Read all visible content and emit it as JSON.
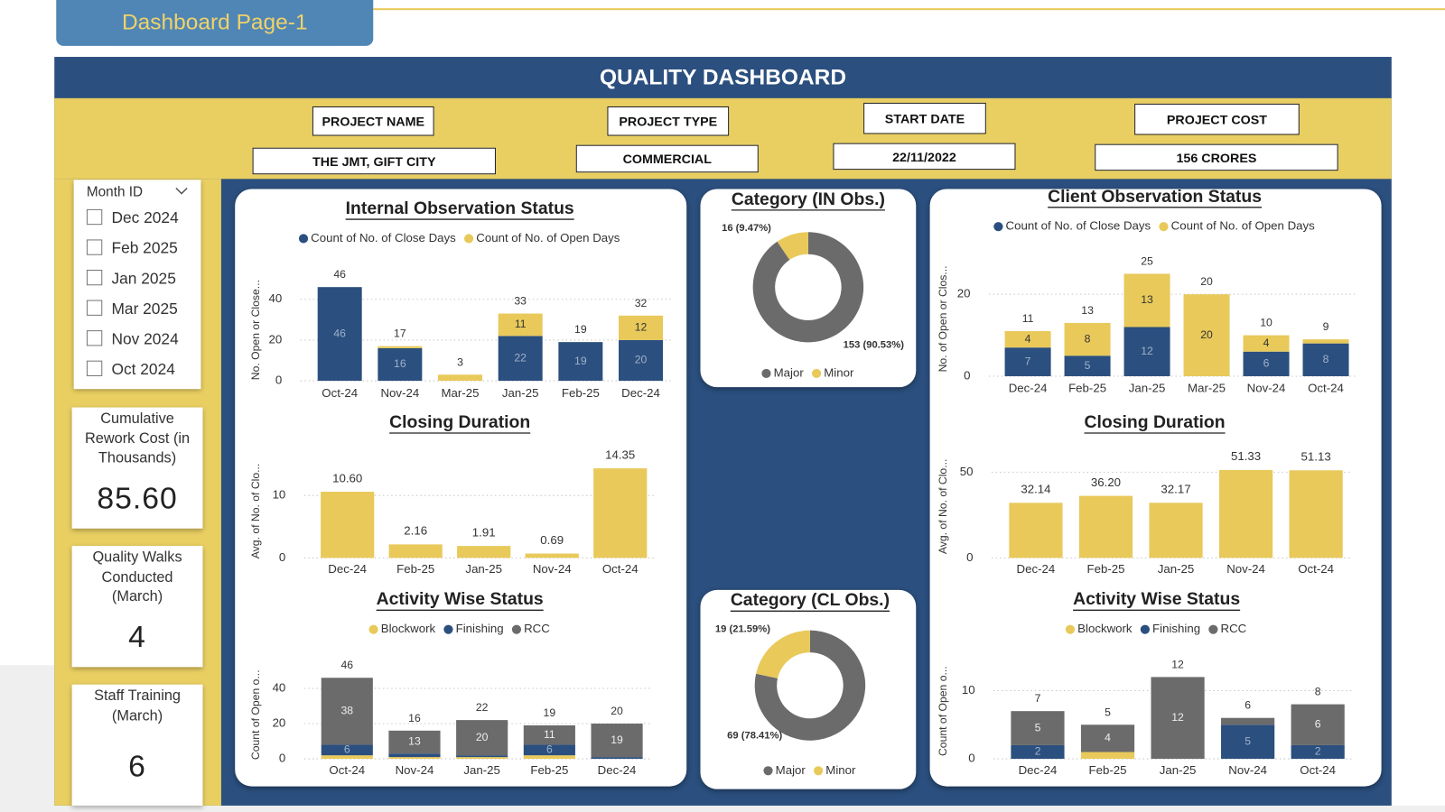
{
  "page_tab": "Dashboard Page-1",
  "dashboard_title": "QUALITY DASHBOARD",
  "project_info": [
    {
      "label": "PROJECT NAME",
      "value": "THE JMT, GIFT CITY"
    },
    {
      "label": "PROJECT TYPE",
      "value": "COMMERCIAL"
    },
    {
      "label": "START DATE",
      "value": "22/11/2022"
    },
    {
      "label": "PROJECT COST",
      "value": "156 CRORES"
    }
  ],
  "slicer": {
    "title": "Month ID",
    "items": [
      "Dec 2024",
      "Feb 2025",
      "Jan 2025",
      "Mar 2025",
      "Nov 2024",
      "Oct 2024"
    ]
  },
  "kpis": [
    {
      "label": "Cumulative Rework Cost (in Thousands)",
      "value": "85.60"
    },
    {
      "label": "Quality Walks Conducted (March)",
      "value": "4"
    },
    {
      "label": "Staff Training (March)",
      "value": "6"
    }
  ],
  "chart_data": [
    {
      "type": "stacked_bar",
      "title": "Internal Observation Status",
      "y_label": "No. Open or Close...",
      "categories": [
        "Oct-24",
        "Nov-24",
        "Mar-25",
        "Jan-25",
        "Feb-25",
        "Dec-24"
      ],
      "series": [
        {
          "name": "Count of No. of Close Days",
          "color": "#2b4f7e",
          "values": [
            46,
            16,
            0,
            22,
            19,
            20
          ]
        },
        {
          "name": "Count of No. of Open Days",
          "color": "#e8c95a",
          "values": [
            0,
            1,
            3,
            11,
            0,
            12
          ]
        }
      ],
      "totals": [
        46,
        17,
        3,
        33,
        19,
        32
      ],
      "ylim": [
        0,
        50
      ],
      "yticks": [
        0,
        20,
        40
      ],
      "grid": true
    },
    {
      "type": "bar",
      "title": "Closing Duration",
      "y_label": "Avg. of No. of Clo...",
      "categories": [
        "Dec-24",
        "Feb-25",
        "Jan-25",
        "Nov-24",
        "Oct-24"
      ],
      "values": [
        10.6,
        2.16,
        1.91,
        0.69,
        14.35
      ],
      "value_labels": [
        "10.60",
        "2.16",
        "1.91",
        "0.69",
        "14.35"
      ],
      "color": "#e8c95a",
      "ylim": [
        0,
        15
      ],
      "yticks": [
        0,
        10
      ],
      "grid": true
    },
    {
      "type": "stacked_bar",
      "title": "Activity Wise Status",
      "y_label": "Count of Open o...",
      "categories": [
        "Oct-24",
        "Nov-24",
        "Jan-25",
        "Feb-25",
        "Dec-24"
      ],
      "series": [
        {
          "name": "Blockwork",
          "color": "#e8c95a",
          "values": [
            2,
            1,
            1,
            2,
            0
          ]
        },
        {
          "name": "Finishing",
          "color": "#2b4f7e",
          "values": [
            6,
            2,
            1,
            6,
            1
          ]
        },
        {
          "name": "RCC",
          "color": "#6b6b6b",
          "values": [
            38,
            13,
            20,
            11,
            19
          ]
        }
      ],
      "totals": [
        46,
        16,
        22,
        19,
        20
      ],
      "ylim": [
        0,
        50
      ],
      "yticks": [
        0,
        20,
        40
      ],
      "grid": true
    },
    {
      "type": "donut",
      "title": "Category (IN Obs.)",
      "categories": [
        "Major",
        "Minor"
      ],
      "values": [
        153,
        16
      ],
      "value_labels": [
        "153 (90.53%)",
        "16 (9.47%)"
      ],
      "colors": [
        "#6b6b6b",
        "#e8c95a"
      ]
    },
    {
      "type": "donut",
      "title": "Category (CL Obs.)",
      "categories": [
        "Major",
        "Minor"
      ],
      "values": [
        69,
        19
      ],
      "value_labels": [
        "69 (78.41%)",
        "19 (21.59%)"
      ],
      "colors": [
        "#6b6b6b",
        "#e8c95a"
      ]
    },
    {
      "type": "stacked_bar",
      "title": "Client Observation Status",
      "y_label": "No. of Open or Clos...",
      "categories": [
        "Dec-24",
        "Feb-25",
        "Jan-25",
        "Mar-25",
        "Nov-24",
        "Oct-24"
      ],
      "series": [
        {
          "name": "Count of No. of Close Days",
          "color": "#2b4f7e",
          "values": [
            7,
            5,
            12,
            0,
            6,
            8
          ]
        },
        {
          "name": "Count of No. of Open Days",
          "color": "#e8c95a",
          "values": [
            4,
            8,
            13,
            20,
            4,
            1
          ]
        }
      ],
      "totals": [
        11,
        13,
        25,
        20,
        10,
        9
      ],
      "ylim": [
        0,
        28
      ],
      "yticks": [
        0,
        20
      ],
      "grid": true
    },
    {
      "type": "bar",
      "title": "Closing Duration",
      "y_label": "Avg. of No. of Clo...",
      "categories": [
        "Dec-24",
        "Feb-25",
        "Jan-25",
        "Nov-24",
        "Oct-24"
      ],
      "values": [
        32.14,
        36.2,
        32.17,
        51.33,
        51.13
      ],
      "value_labels": [
        "32.14",
        "36.20",
        "32.17",
        "51.33",
        "51.13"
      ],
      "color": "#e8c95a",
      "ylim": [
        0,
        60
      ],
      "yticks": [
        0,
        50
      ],
      "grid": true
    },
    {
      "type": "stacked_bar",
      "title": "Activity Wise Status",
      "y_label": "Count of Open o...",
      "categories": [
        "Dec-24",
        "Feb-25",
        "Jan-25",
        "Nov-24",
        "Oct-24"
      ],
      "series": [
        {
          "name": "Blockwork",
          "color": "#e8c95a",
          "values": [
            0,
            1,
            0,
            0,
            0
          ]
        },
        {
          "name": "Finishing",
          "color": "#2b4f7e",
          "values": [
            2,
            0,
            0,
            5,
            2
          ]
        },
        {
          "name": "RCC",
          "color": "#6b6b6b",
          "values": [
            5,
            4,
            12,
            1,
            6
          ]
        }
      ],
      "totals": [
        7,
        5,
        12,
        6,
        8
      ],
      "ylim": [
        0,
        14
      ],
      "yticks": [
        0,
        10
      ],
      "grid": true
    }
  ]
}
